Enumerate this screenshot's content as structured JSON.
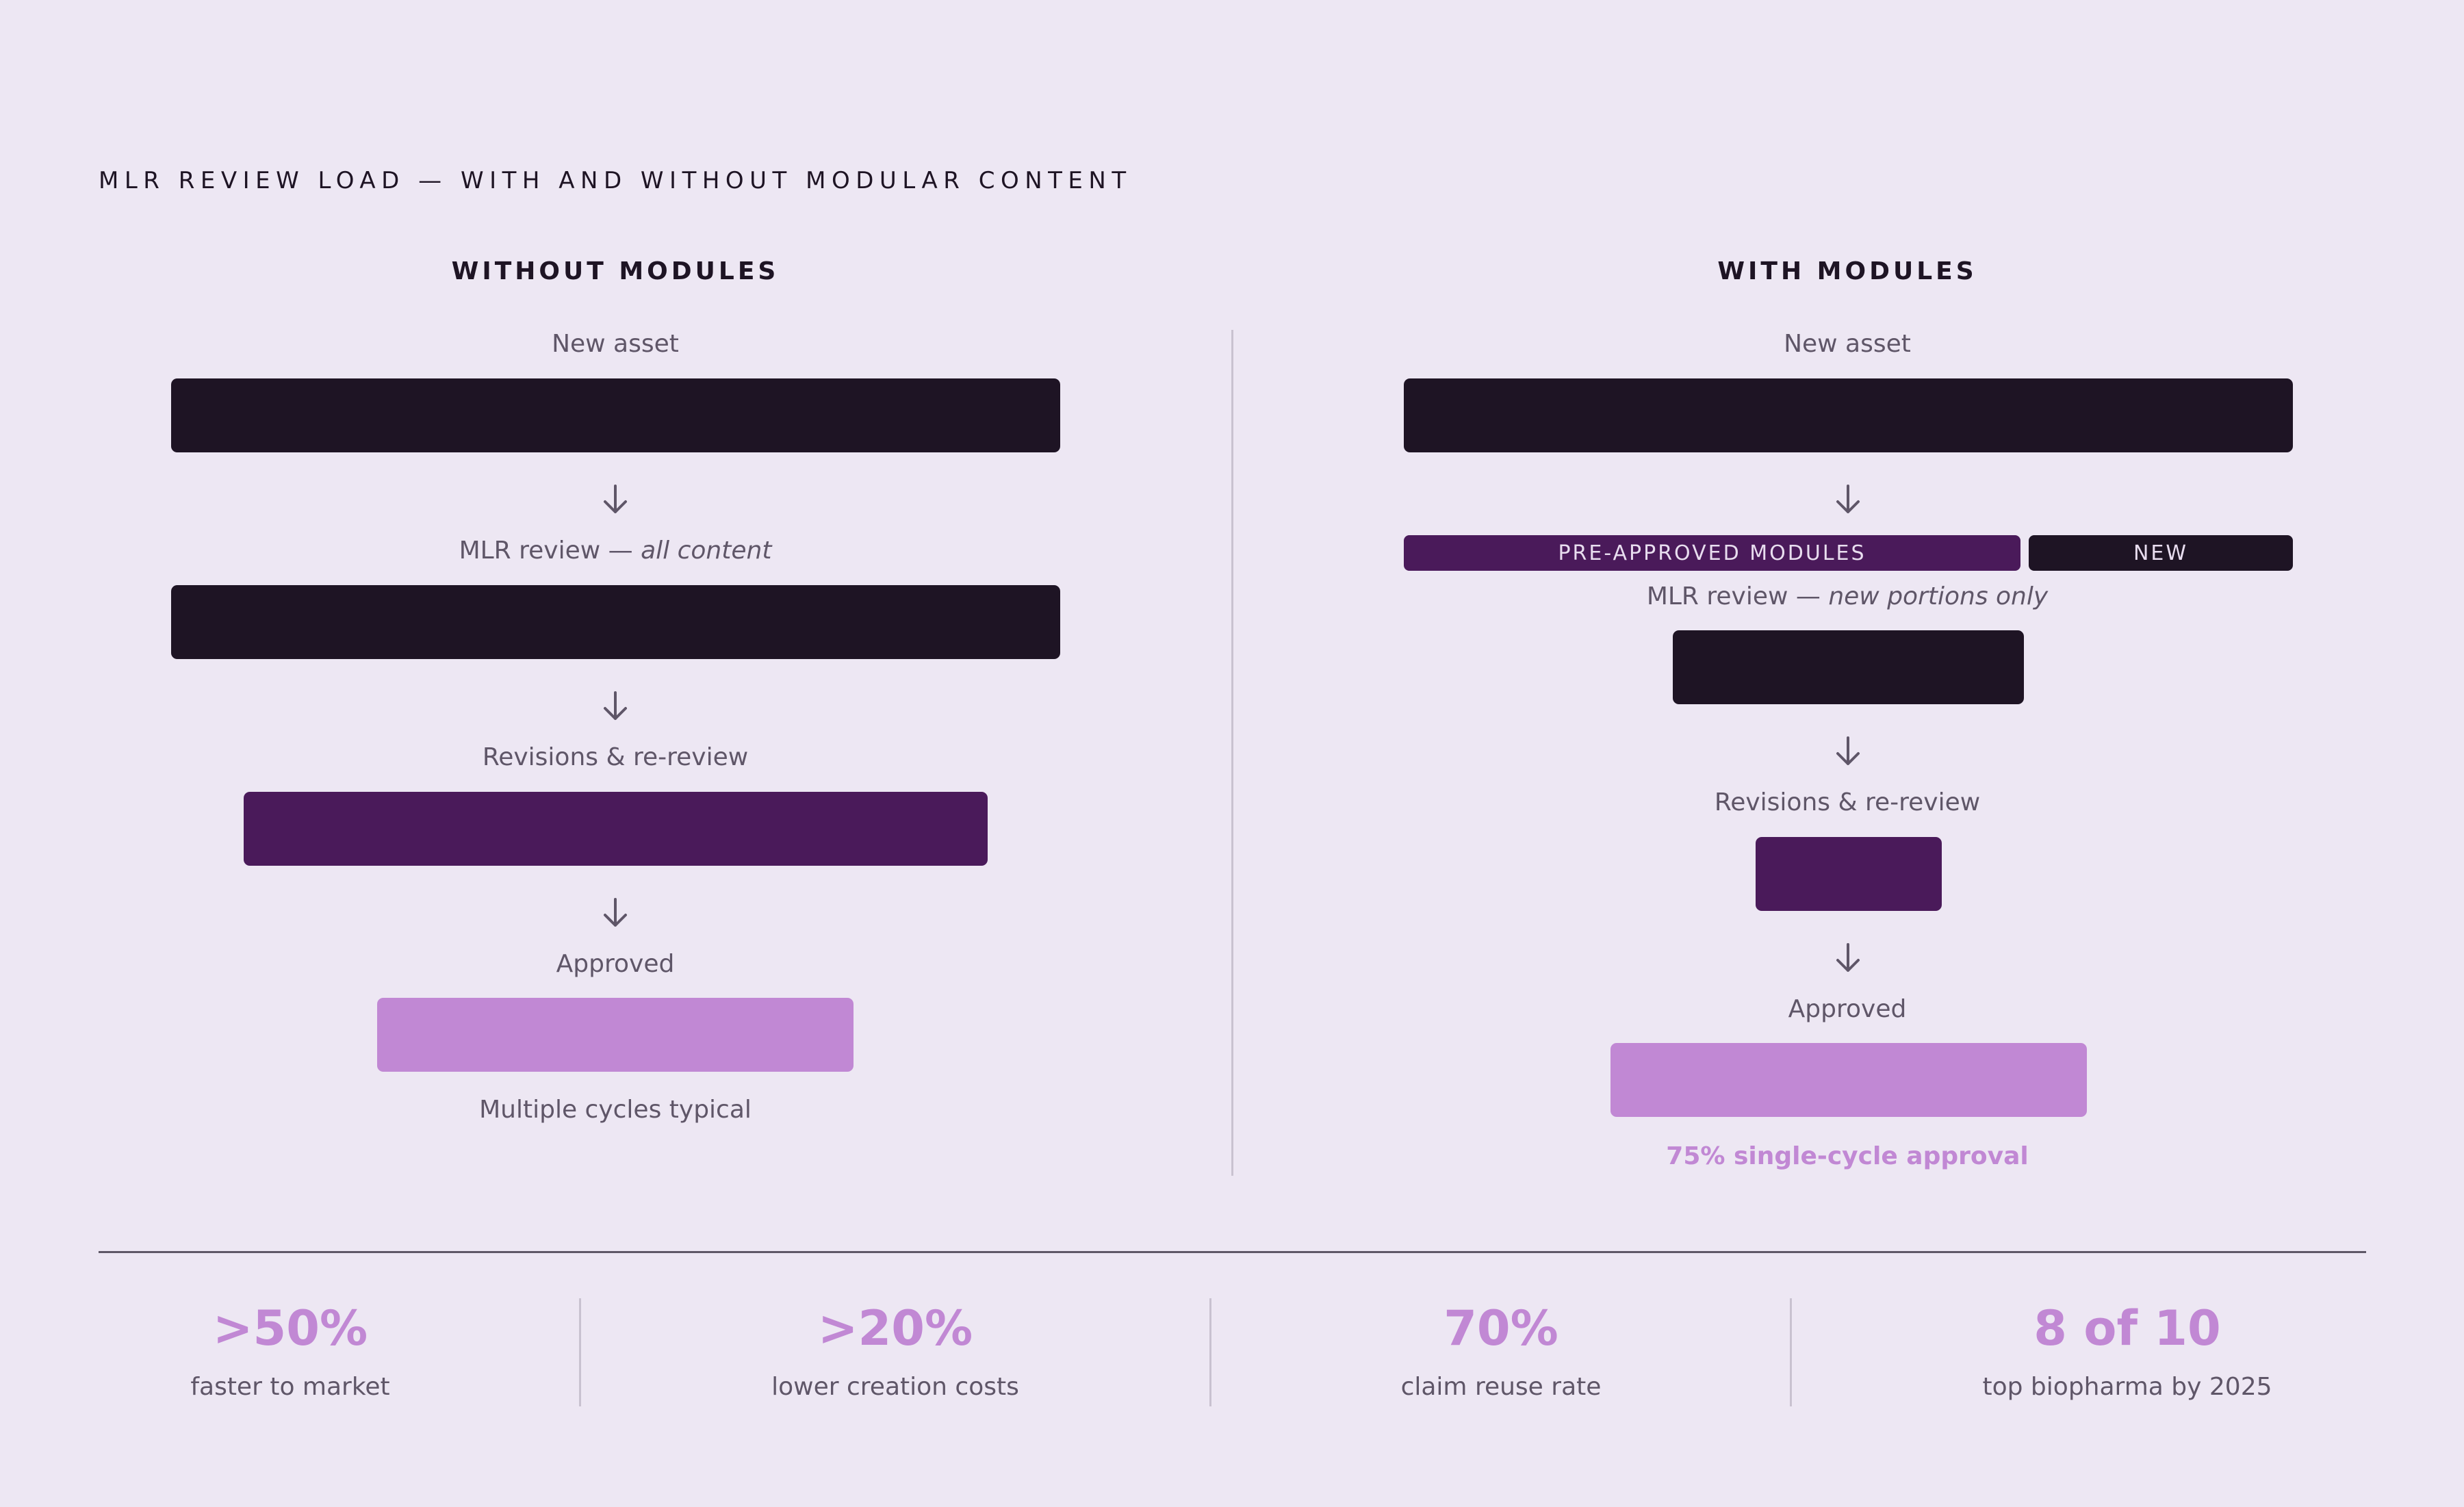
{
  "title": "MLR REVIEW LOAD — WITH AND WITHOUT MODULAR CONTENT",
  "without": {
    "heading": "WITHOUT MODULES",
    "steps": [
      {
        "label": "New asset"
      },
      {
        "label": "MLR review — ",
        "label_em": "all content"
      },
      {
        "label": "Revisions & re-review"
      },
      {
        "label": "Approved"
      }
    ],
    "note": "Multiple cycles typical"
  },
  "with": {
    "heading": "WITH MODULES",
    "steps": [
      {
        "label": "New asset"
      },
      {
        "label": "MLR review — ",
        "label_em": "new portions only"
      },
      {
        "label": "Revisions & re-review"
      },
      {
        "label": "Approved"
      }
    ],
    "pre_approved_label": "PRE-APPROVED MODULES",
    "new_label": "NEW",
    "note": "75% single-cycle approval"
  },
  "stats": [
    {
      "value": ">50%",
      "label": "faster to market"
    },
    {
      "value": ">20%",
      "label": "lower creation costs"
    },
    {
      "value": "70%",
      "label": "claim reuse rate"
    },
    {
      "value": "8 of 10",
      "label": "top biopharma by 2025"
    }
  ],
  "colors": {
    "background": "#ede7f3",
    "dark": "#1e1424",
    "plum": "#4a1a5a",
    "lilac": "#c188d4",
    "muted_text": "#5f5668"
  }
}
